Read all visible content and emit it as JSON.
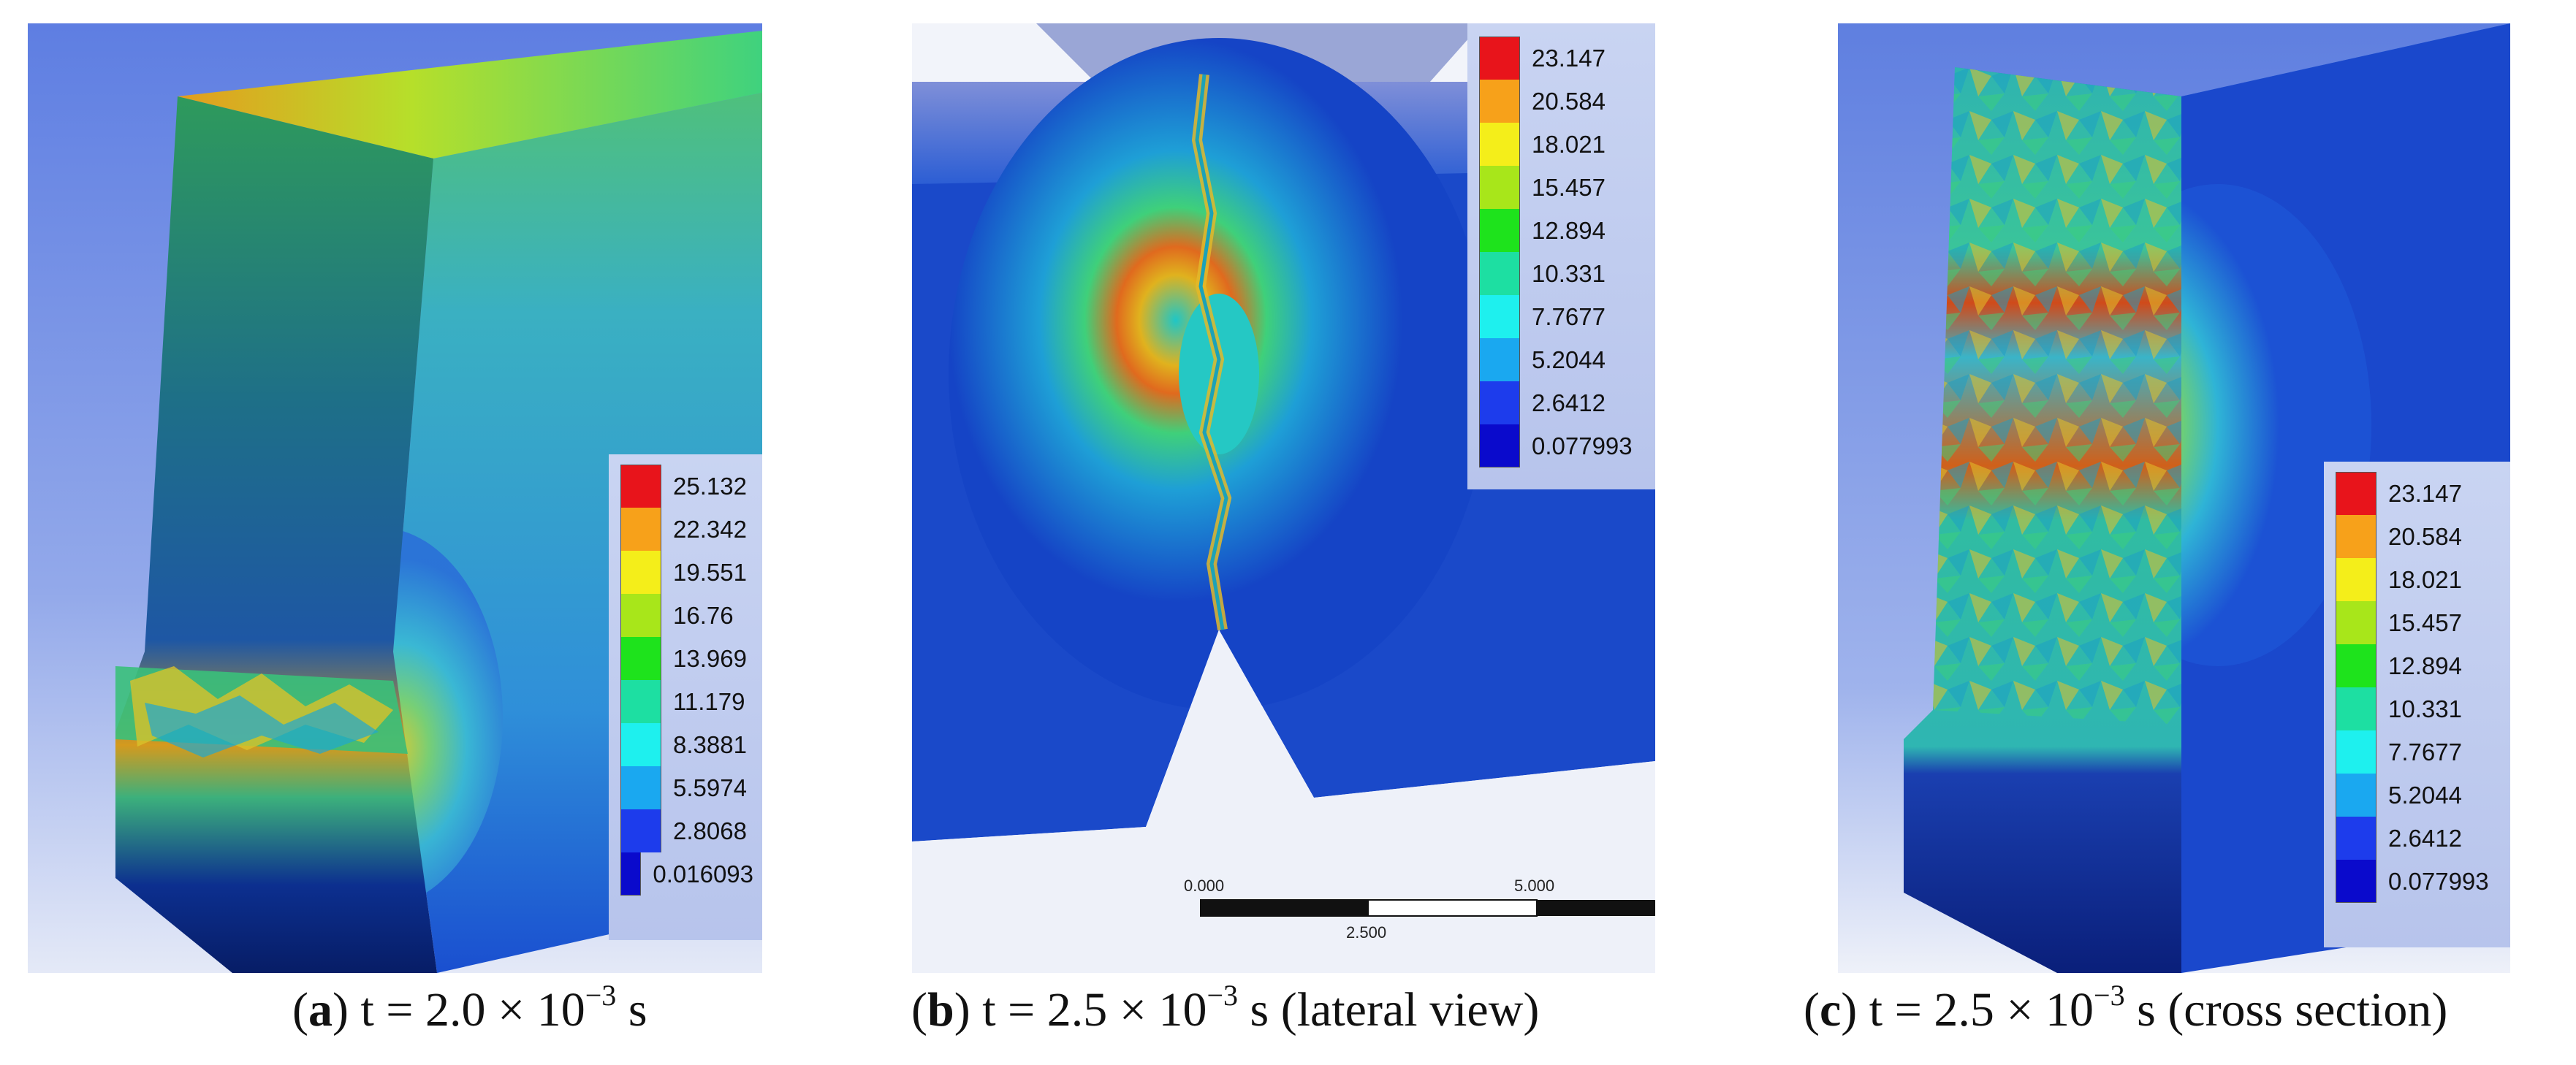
{
  "panels": [
    {
      "id": "a",
      "caption": {
        "letter": "a",
        "time": "t = 2.0 × 10",
        "exp": "−3",
        "unit": " s",
        "suffix": ""
      },
      "legend": [
        "25.132",
        "22.342",
        "19.551",
        "16.76",
        "13.969",
        "11.179",
        "8.3881",
        "5.5974",
        "2.8068",
        "0.016093"
      ]
    },
    {
      "id": "b",
      "caption": {
        "letter": "b",
        "time": "t = 2.5 × 10",
        "exp": "−3",
        "unit": " s",
        "suffix": " (lateral view)"
      },
      "legend": [
        "23.147",
        "20.584",
        "18.021",
        "15.457",
        "12.894",
        "10.331",
        "7.7677",
        "5.2044",
        "2.6412",
        "0.077993"
      ],
      "scalebar": {
        "start": "0.000",
        "mid": "2.500",
        "end": "5.000"
      }
    },
    {
      "id": "c",
      "caption": {
        "letter": "c",
        "time": "t = 2.5 × 10",
        "exp": "−3",
        "unit": " s",
        "suffix": " (cross section)"
      },
      "legend": [
        "23.147",
        "20.584",
        "18.021",
        "15.457",
        "12.894",
        "10.331",
        "7.7677",
        "5.2044",
        "2.6412",
        "0.077993"
      ]
    }
  ],
  "legend_colors": [
    "#e8141b",
    "#f7a11a",
    "#f4ee1a",
    "#a8e61a",
    "#1ee31c",
    "#1ddfa2",
    "#1ef0ee",
    "#1aa8f0",
    "#1d3cec",
    "#0a0acc"
  ]
}
